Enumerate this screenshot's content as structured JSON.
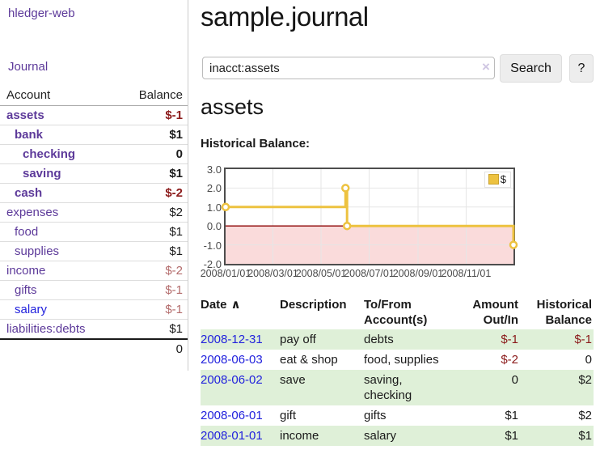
{
  "colors": {
    "accent_purple": "#5d3a9a",
    "link_blue": "#2222dd",
    "negative_strong": "#8b1a1a",
    "negative_soft": "#b36b6b",
    "stripe_green": "#dff0d8",
    "chart_gold": "#edc240",
    "chart_gold_border": "#c9a22e",
    "chart_negative_region": "#fadbdb",
    "chart_zero_line": "#8b0000",
    "chart_grid": "#e6e6e6",
    "chart_border": "#4d4d4d"
  },
  "sidebar": {
    "brand": "hledger-web",
    "nav": {
      "journal": "Journal"
    },
    "accounts_table": {
      "account_header": "Account",
      "balance_header": "Balance",
      "rows": [
        {
          "account": "assets",
          "balance": "$-1",
          "depth": 1,
          "bold": true,
          "neg": "strong"
        },
        {
          "account": "bank",
          "balance": "$1",
          "depth": 2,
          "bold": true
        },
        {
          "account": "checking",
          "balance": "0",
          "depth": 3,
          "bold": true
        },
        {
          "account": "saving",
          "balance": "$1",
          "depth": 3,
          "bold": true
        },
        {
          "account": "cash",
          "balance": "$-2",
          "depth": 2,
          "bold": true,
          "neg": "strong"
        },
        {
          "account": "expenses",
          "balance": "$2",
          "depth": 1
        },
        {
          "account": "food",
          "balance": "$1",
          "depth": 2
        },
        {
          "account": "supplies",
          "balance": "$1",
          "depth": 2
        },
        {
          "account": "income",
          "balance": "$-2",
          "depth": 1,
          "neg": "soft"
        },
        {
          "account": "gifts",
          "balance": "$-1",
          "depth": 2,
          "neg": "soft"
        },
        {
          "account": "salary",
          "balance": "$-1",
          "depth": 2,
          "neg": "soft",
          "link": "blue"
        },
        {
          "account": "liabilities:debts",
          "balance": "$1",
          "depth": 1
        }
      ],
      "total": "0"
    }
  },
  "main": {
    "title": "sample.journal",
    "search": {
      "value": "inacct:assets",
      "clear_icon": "×",
      "search_button": "Search",
      "help_button": "?"
    },
    "account_heading": "assets",
    "chart_label": "Historical Balance:"
  },
  "chart_data": {
    "type": "line",
    "step": true,
    "title": "Historical Balance:",
    "series": [
      {
        "name": "$",
        "points": [
          [
            "2008-01-01",
            1
          ],
          [
            "2008-06-01",
            2
          ],
          [
            "2008-06-03",
            0
          ],
          [
            "2008-12-31",
            -1
          ]
        ]
      }
    ],
    "x_ticks": [
      "2008/01/01",
      "2008/03/01",
      "2008/05/01",
      "2008/07/01",
      "2008/09/01",
      "2008/11/01"
    ],
    "y_ticks": [
      "3.0",
      "2.0",
      "1.0",
      "0.0",
      "-1.0",
      "-2.0"
    ],
    "xlim": [
      "2008-01-01",
      "2008-12-31"
    ],
    "ylim": [
      -2,
      3
    ],
    "grid": true,
    "legend": {
      "label": "$",
      "position": "top-right"
    },
    "negative_region": true
  },
  "register": {
    "sort_arrow": "∧",
    "headers": [
      {
        "lines": [
          "Date"
        ],
        "align": "left",
        "sorted": "asc"
      },
      {
        "lines": [
          "Description"
        ],
        "align": "left"
      },
      {
        "lines": [
          "To/From",
          "Account(s)"
        ],
        "align": "left"
      },
      {
        "lines": [
          "Amount",
          "Out/In"
        ],
        "align": "right"
      },
      {
        "lines": [
          "Historical",
          "Balance"
        ],
        "align": "right"
      }
    ],
    "rows": [
      {
        "date": "2008-12-31",
        "description": "pay off",
        "accounts": "debts",
        "amount": "$-1",
        "balance": "$-1",
        "amount_negative": true,
        "balance_negative": true,
        "shaded": true
      },
      {
        "date": "2008-06-03",
        "description": "eat & shop",
        "accounts": "food, supplies",
        "amount": "$-2",
        "balance": "0",
        "amount_negative": true,
        "balance_negative": false,
        "shaded": false
      },
      {
        "date": "2008-06-02",
        "description": "save",
        "accounts": "saving, checking",
        "amount": "0",
        "balance": "$2",
        "amount_negative": false,
        "balance_negative": false,
        "shaded": true
      },
      {
        "date": "2008-06-01",
        "description": "gift",
        "accounts": "gifts",
        "amount": "$1",
        "balance": "$2",
        "amount_negative": false,
        "balance_negative": false,
        "shaded": false
      },
      {
        "date": "2008-01-01",
        "description": "income",
        "accounts": "salary",
        "amount": "$1",
        "balance": "$1",
        "amount_negative": false,
        "balance_negative": false,
        "shaded": true
      }
    ]
  }
}
